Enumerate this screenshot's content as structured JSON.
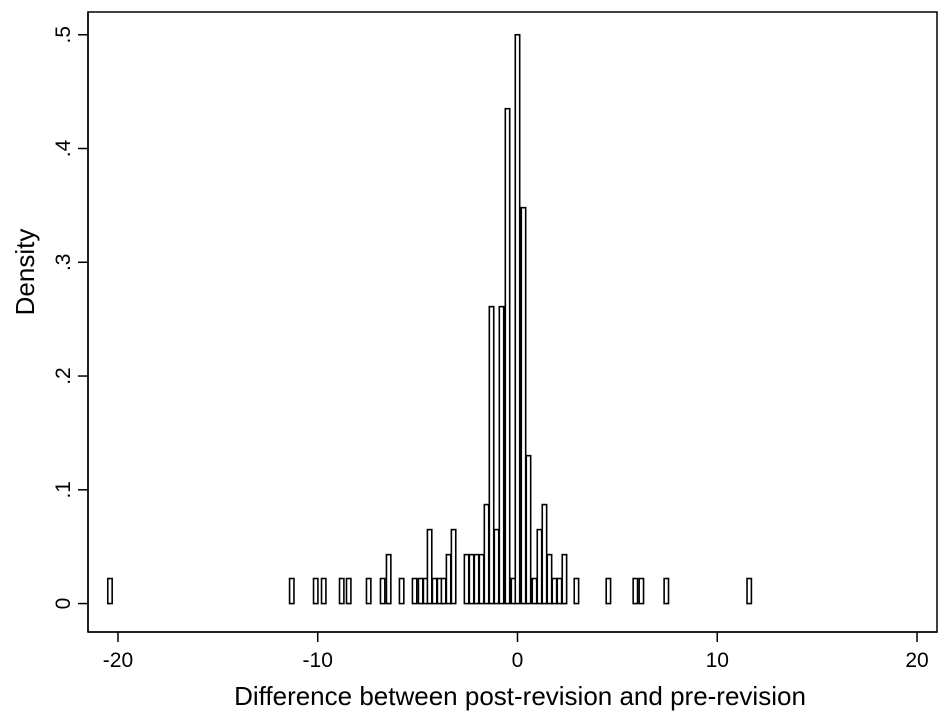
{
  "chart_data": {
    "type": "bar",
    "title": "",
    "xlabel": "Difference between post-revision and pre-revision",
    "ylabel": "Density",
    "xlim": [
      -21.5,
      21
    ],
    "ylim": [
      -0.025,
      0.52
    ],
    "xticks": [
      -20,
      -10,
      0,
      10,
      20
    ],
    "xtick_labels": [
      "-20",
      "-10",
      "0",
      "10",
      "20"
    ],
    "yticks": [
      0,
      0.1,
      0.2,
      0.3,
      0.4,
      0.5
    ],
    "ytick_labels": [
      "0",
      ".1",
      ".2",
      ".3",
      ".4",
      ".5"
    ],
    "bin_width": 0.22,
    "grid": false,
    "legend": "none",
    "bar_fill": "#ffffff",
    "bar_stroke": "#000000",
    "bins": [
      {
        "x": -20.4,
        "density": 0.022
      },
      {
        "x": -11.3,
        "density": 0.022
      },
      {
        "x": -10.1,
        "density": 0.022
      },
      {
        "x": -9.7,
        "density": 0.022
      },
      {
        "x": -8.8,
        "density": 0.022
      },
      {
        "x": -8.45,
        "density": 0.022
      },
      {
        "x": -7.45,
        "density": 0.022
      },
      {
        "x": -6.75,
        "density": 0.022
      },
      {
        "x": -6.45,
        "density": 0.043
      },
      {
        "x": -5.8,
        "density": 0.022
      },
      {
        "x": -5.15,
        "density": 0.022
      },
      {
        "x": -4.85,
        "density": 0.022
      },
      {
        "x": -4.6,
        "density": 0.022
      },
      {
        "x": -4.4,
        "density": 0.065
      },
      {
        "x": -4.15,
        "density": 0.022
      },
      {
        "x": -3.9,
        "density": 0.022
      },
      {
        "x": -3.7,
        "density": 0.022
      },
      {
        "x": -3.45,
        "density": 0.043
      },
      {
        "x": -3.2,
        "density": 0.065
      },
      {
        "x": -2.55,
        "density": 0.043
      },
      {
        "x": -2.3,
        "density": 0.043
      },
      {
        "x": -2.05,
        "density": 0.043
      },
      {
        "x": -1.8,
        "density": 0.043
      },
      {
        "x": -1.55,
        "density": 0.087
      },
      {
        "x": -1.3,
        "density": 0.261
      },
      {
        "x": -1.05,
        "density": 0.065
      },
      {
        "x": -0.8,
        "density": 0.261
      },
      {
        "x": -0.5,
        "density": 0.435
      },
      {
        "x": -0.2,
        "density": 0.022
      },
      {
        "x": 0.0,
        "density": 0.5
      },
      {
        "x": 0.3,
        "density": 0.348
      },
      {
        "x": 0.55,
        "density": 0.13
      },
      {
        "x": 0.85,
        "density": 0.022
      },
      {
        "x": 1.1,
        "density": 0.065
      },
      {
        "x": 1.35,
        "density": 0.087
      },
      {
        "x": 1.6,
        "density": 0.043
      },
      {
        "x": 1.85,
        "density": 0.022
      },
      {
        "x": 2.1,
        "density": 0.022
      },
      {
        "x": 2.35,
        "density": 0.043
      },
      {
        "x": 2.95,
        "density": 0.022
      },
      {
        "x": 4.55,
        "density": 0.022
      },
      {
        "x": 5.9,
        "density": 0.022
      },
      {
        "x": 6.2,
        "density": 0.022
      },
      {
        "x": 7.45,
        "density": 0.022
      },
      {
        "x": 11.6,
        "density": 0.022
      }
    ]
  }
}
